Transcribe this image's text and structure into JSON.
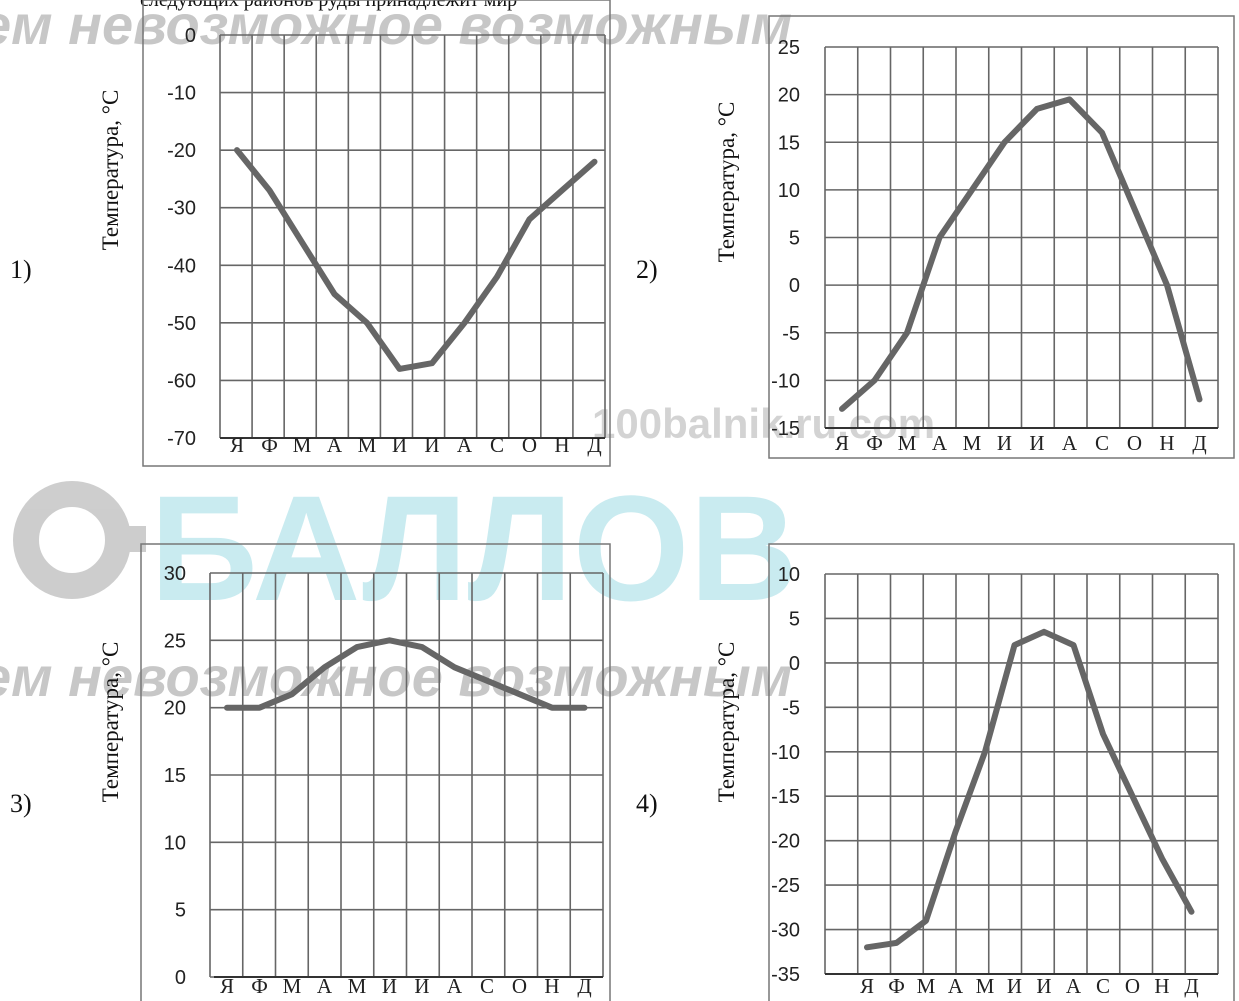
{
  "top_text": "следующих районов руды принадлежит мир",
  "watermark": {
    "phrase": "ем невозможное возможным",
    "brand": "БАЛЛОВ",
    "site": "100balnik.ru.com",
    "color_gray": "#9a9a9a",
    "color_cyan": "#9edbe4"
  },
  "line_color": "#666666",
  "chart_data": [
    {
      "type": "line",
      "number_label": "1)",
      "ylabel": "Температура, °С",
      "categories": [
        "Я",
        "Ф",
        "М",
        "А",
        "М",
        "И",
        "И",
        "А",
        "С",
        "О",
        "Н",
        "Д"
      ],
      "ylim": [
        -70,
        0
      ],
      "yticks": [
        0,
        -10,
        -20,
        -30,
        -40,
        -50,
        -60,
        -70
      ],
      "grid": true,
      "values": [
        -20,
        -27,
        -36,
        -45,
        -50,
        -58,
        -57,
        -50,
        -42,
        -32,
        -27,
        -22
      ]
    },
    {
      "type": "line",
      "number_label": "2)",
      "ylabel": "Температура, °С",
      "categories": [
        "Я",
        "Ф",
        "М",
        "А",
        "М",
        "И",
        "И",
        "А",
        "С",
        "О",
        "Н",
        "Д"
      ],
      "ylim": [
        -15,
        25
      ],
      "yticks": [
        25,
        20,
        15,
        10,
        5,
        0,
        -5,
        -10,
        -15
      ],
      "grid": true,
      "values": [
        -13,
        -10,
        -5,
        5,
        10,
        15,
        18.5,
        19.5,
        16,
        8,
        0,
        -12
      ]
    },
    {
      "type": "line",
      "number_label": "3)",
      "ylabel": "Температура, °С",
      "categories": [
        "Я",
        "Ф",
        "М",
        "А",
        "М",
        "И",
        "И",
        "А",
        "С",
        "О",
        "Н",
        "Д"
      ],
      "ylim": [
        0,
        30
      ],
      "yticks": [
        30,
        25,
        20,
        15,
        10,
        5,
        0
      ],
      "grid": true,
      "values": [
        20,
        20,
        21,
        23,
        24.5,
        25,
        24.5,
        23,
        22,
        21,
        20,
        20
      ]
    },
    {
      "type": "line",
      "number_label": "4)",
      "ylabel": "Температура, °С",
      "categories": [
        "Я",
        "Ф",
        "М",
        "А",
        "М",
        "И",
        "И",
        "А",
        "С",
        "О",
        "Н",
        "Д"
      ],
      "ylim": [
        -35,
        10
      ],
      "yticks": [
        10,
        5,
        0,
        -5,
        -10,
        -15,
        -20,
        -25,
        -30,
        -35
      ],
      "grid": true,
      "values": [
        -32,
        -31.5,
        -29,
        -19,
        -10,
        2,
        3.5,
        2,
        -8,
        -15,
        -22,
        -28
      ]
    }
  ]
}
